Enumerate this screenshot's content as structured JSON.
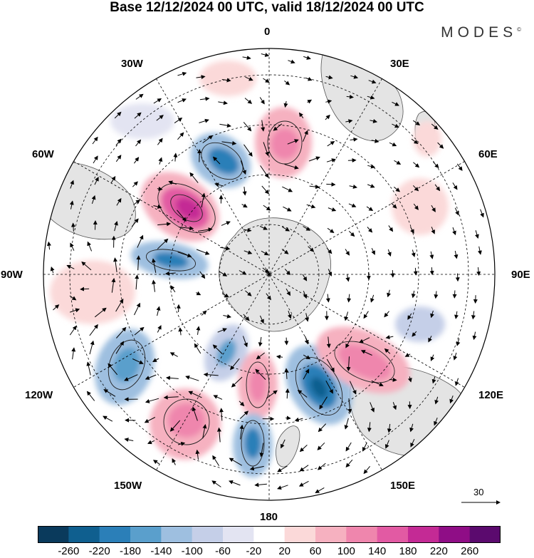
{
  "title": "Base 12/12/2024 00 UTC, valid 18/12/2024 00 UTC",
  "logo": "MODES",
  "logo_mark": "©",
  "longitude_labels": {
    "lon_0": "0",
    "lon_30e": "30E",
    "lon_60e": "60E",
    "lon_90e": "90E",
    "lon_120e": "120E",
    "lon_150e": "150E",
    "lon_180": "180",
    "lon_150w": "150W",
    "lon_120w": "120W",
    "lon_90w": "90W",
    "lon_60w": "60W",
    "lon_30w": "30W"
  },
  "reference_vector": "30",
  "colorbar": {
    "ticks": [
      "-260",
      "-220",
      "-180",
      "-140",
      "-100",
      "-60",
      "-20",
      "20",
      "60",
      "100",
      "140",
      "180",
      "220",
      "260"
    ],
    "colors": [
      "#0a3a5c",
      "#0f5f8f",
      "#2b7fb8",
      "#5a9fcc",
      "#9ebfe0",
      "#c5cfe8",
      "#e3e4f2",
      "#ffffff",
      "#fbd9d9",
      "#f6b1c0",
      "#ef86ad",
      "#e25aa3",
      "#c42a95",
      "#8f0d86",
      "#5b0a6e"
    ]
  }
}
